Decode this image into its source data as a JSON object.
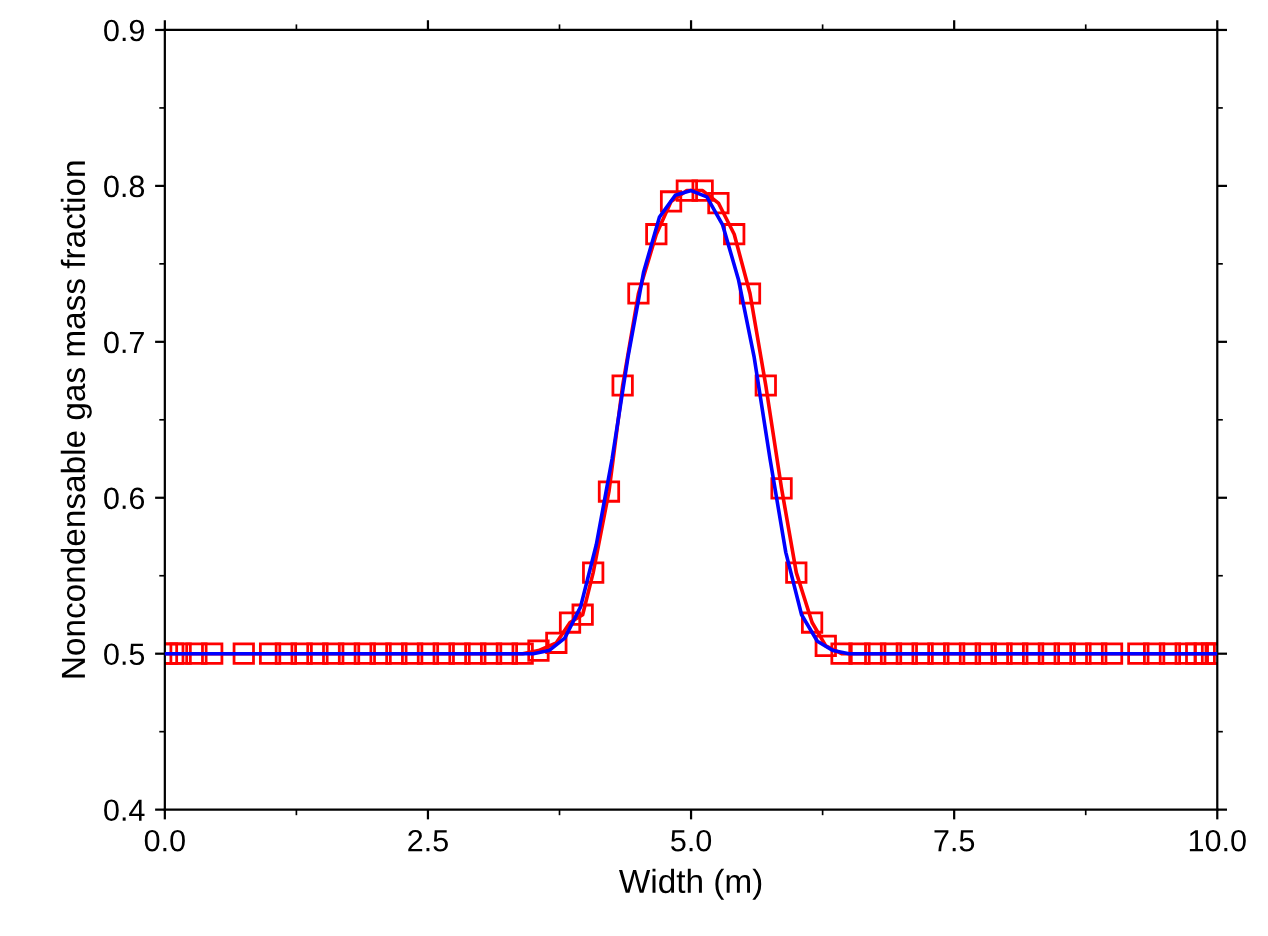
{
  "chart_data": {
    "type": "line",
    "xlabel": "Width (m)",
    "ylabel": "Noncondensable gas mass fraction",
    "xlim": [
      0,
      10
    ],
    "ylim": [
      0.4,
      0.9
    ],
    "xticks": [
      {
        "value": 0,
        "label": "0.0"
      },
      2.5,
      {
        "value": 5,
        "label": "5.0"
      },
      7.5,
      {
        "value": 10,
        "label": "10.0"
      }
    ],
    "yticks": [
      0.4,
      0.5,
      0.6,
      0.7,
      0.8,
      0.9
    ],
    "grid": false,
    "series": [
      {
        "color": "#ff0000",
        "marker": "square",
        "line_style": "solid",
        "x": [
          0.02,
          0.08,
          0.15,
          0.3,
          0.45,
          0.75,
          1.0,
          1.15,
          1.3,
          1.45,
          1.6,
          1.75,
          1.9,
          2.05,
          2.2,
          2.35,
          2.5,
          2.65,
          2.8,
          2.95,
          3.1,
          3.25,
          3.4,
          3.55,
          3.72,
          3.85,
          3.97,
          4.07,
          4.22,
          4.35,
          4.5,
          4.67,
          4.81,
          4.96,
          5.11,
          5.26,
          5.41,
          5.56,
          5.71,
          5.86,
          6.0,
          6.15,
          6.28,
          6.43,
          6.6,
          6.75,
          6.9,
          7.05,
          7.2,
          7.35,
          7.5,
          7.65,
          7.8,
          7.95,
          8.1,
          8.25,
          8.4,
          8.55,
          8.7,
          8.85,
          9.0,
          9.25,
          9.4,
          9.55,
          9.7,
          9.8,
          9.88,
          9.95,
          10.0
        ],
        "values": [
          0.5,
          0.5,
          0.5,
          0.5,
          0.5,
          0.5,
          0.5,
          0.5,
          0.5,
          0.5,
          0.5,
          0.5,
          0.5,
          0.5,
          0.5,
          0.5,
          0.5,
          0.5,
          0.5,
          0.5,
          0.5,
          0.5,
          0.5,
          0.502,
          0.507,
          0.52,
          0.525,
          0.552,
          0.604,
          0.672,
          0.731,
          0.769,
          0.79,
          0.797,
          0.797,
          0.789,
          0.769,
          0.731,
          0.672,
          0.606,
          0.552,
          0.52,
          0.505,
          0.5,
          0.5,
          0.5,
          0.5,
          0.5,
          0.5,
          0.5,
          0.5,
          0.5,
          0.5,
          0.5,
          0.5,
          0.5,
          0.5,
          0.5,
          0.5,
          0.5,
          0.5,
          0.5,
          0.5,
          0.5,
          0.5,
          0.5,
          0.5,
          0.5,
          0.5
        ]
      },
      {
        "color": "#0000ff",
        "marker": "none",
        "line_style": "solid",
        "x": [
          0,
          3.5,
          3.65,
          3.8,
          3.95,
          4.1,
          4.25,
          4.4,
          4.55,
          4.7,
          4.85,
          5.0,
          5.15,
          5.3,
          5.45,
          5.6,
          5.75,
          5.9,
          6.05,
          6.2,
          6.35,
          6.5,
          10
        ],
        "values": [
          0.5,
          0.5,
          0.502,
          0.51,
          0.53,
          0.57,
          0.625,
          0.69,
          0.745,
          0.78,
          0.794,
          0.797,
          0.793,
          0.775,
          0.74,
          0.69,
          0.625,
          0.565,
          0.525,
          0.508,
          0.502,
          0.5,
          0.5
        ]
      }
    ]
  }
}
